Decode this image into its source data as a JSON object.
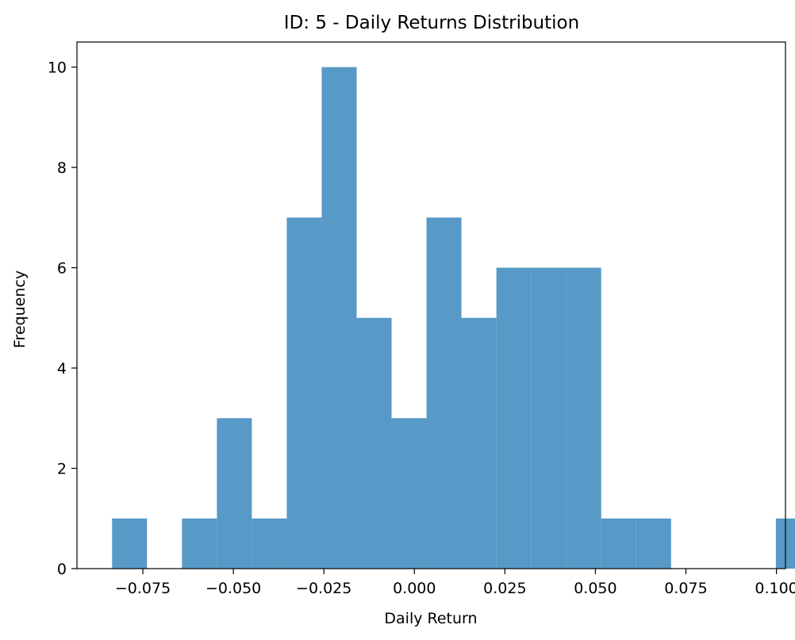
{
  "chart_data": {
    "type": "bar",
    "title": "ID: 5 - Daily Returns Distribution",
    "xlabel": "Daily Return",
    "ylabel": "Frequency",
    "bin_edges": [
      -0.0835,
      -0.07385,
      -0.0642,
      -0.05455,
      -0.0449,
      -0.03525,
      -0.0256,
      -0.01595,
      -0.0063,
      0.00335,
      0.013,
      0.02265,
      0.0323,
      0.04195,
      0.0516,
      0.06125,
      0.0709,
      0.08055,
      0.0902,
      0.09985,
      0.1095
    ],
    "values": [
      1,
      0,
      1,
      3,
      1,
      7,
      10,
      5,
      3,
      7,
      5,
      6,
      6,
      6,
      1,
      1,
      0,
      0,
      0,
      1
    ],
    "xlim": [
      -0.0932,
      0.1025
    ],
    "ylim": [
      0,
      10.5
    ],
    "xticks": [
      -0.075,
      -0.05,
      -0.025,
      0.0,
      0.025,
      0.05,
      0.075,
      0.1
    ],
    "xtick_labels": [
      "−0.075",
      "−0.050",
      "−0.025",
      "0.000",
      "0.025",
      "0.050",
      "0.075",
      "0.100"
    ],
    "yticks": [
      0,
      2,
      4,
      6,
      8,
      10
    ],
    "ytick_labels": [
      "0",
      "2",
      "4",
      "6",
      "8",
      "10"
    ],
    "grid": false,
    "bar_color": "#5799c7"
  }
}
